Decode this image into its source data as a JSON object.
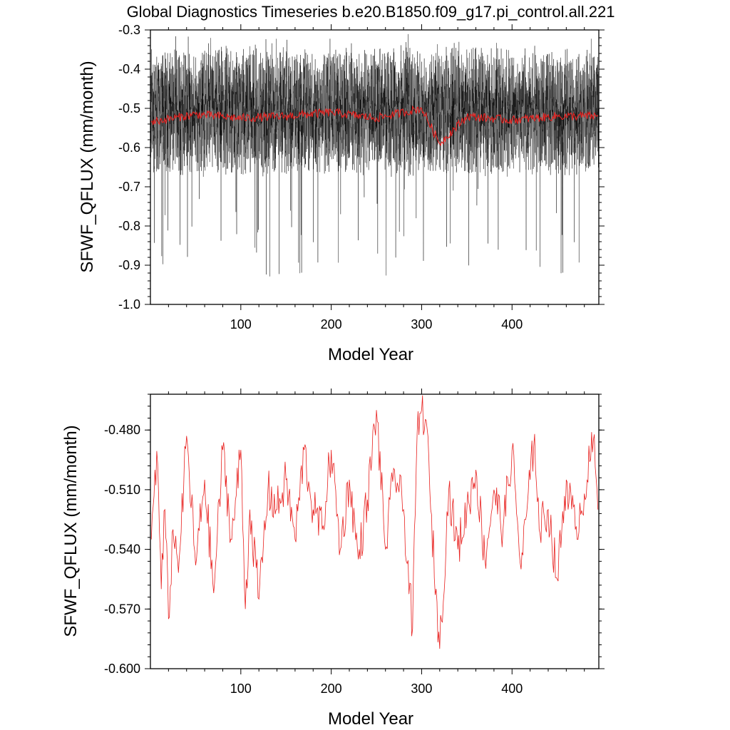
{
  "title": "Global Diagnostics Timeseries b.e20.B1850.f09_g17.pi_control.all.221",
  "colors": {
    "monthly_series": "#000000",
    "annual_series": "#e8201e",
    "background": "#ffffff"
  },
  "chart_data": [
    {
      "type": "line",
      "xlabel": "Model Year",
      "ylabel": "SFWF_QFLUX (mm/month)",
      "xlim": [
        0,
        496
      ],
      "ylim": [
        -1.0,
        -0.3
      ],
      "x_ticks": [
        100,
        200,
        300,
        400
      ],
      "x_tick_labels": [
        "100",
        "200",
        "300",
        "400"
      ],
      "y_ticks": [
        -1.0,
        -0.9,
        -0.8,
        -0.7,
        -0.6,
        -0.5,
        -0.4,
        -0.3
      ],
      "y_tick_labels": [
        "-1.0",
        "-0.9",
        "-0.8",
        "-0.7",
        "-0.6",
        "-0.5",
        "-0.4",
        "-0.3"
      ],
      "grid": false,
      "series": [
        {
          "kind": "monthly",
          "envelope": {
            "mean": -0.51,
            "upper_typical": -0.4,
            "lower_typical": -0.7,
            "max": -0.31,
            "min": -0.935
          }
        },
        {
          "kind": "annual_mean",
          "x": [
            1,
            50,
            100,
            150,
            200,
            250,
            300,
            320,
            350,
            400,
            450,
            495
          ],
          "y": [
            -0.535,
            -0.515,
            -0.525,
            -0.52,
            -0.51,
            -0.525,
            -0.5,
            -0.59,
            -0.52,
            -0.53,
            -0.52,
            -0.52
          ]
        }
      ]
    },
    {
      "type": "line",
      "xlabel": "Model Year",
      "ylabel": "SFWF_QFLUX (mm/month)",
      "xlim": [
        0,
        496
      ],
      "ylim": [
        -0.6,
        -0.462
      ],
      "x_ticks": [
        100,
        200,
        300,
        400
      ],
      "x_tick_labels": [
        "100",
        "200",
        "300",
        "400"
      ],
      "y_ticks": [
        -0.6,
        -0.57,
        -0.54,
        -0.51,
        -0.48
      ],
      "y_tick_labels": [
        "-0.600",
        "-0.570",
        "-0.540",
        "-0.510",
        "-0.480"
      ],
      "grid": false,
      "series": [
        {
          "kind": "annual_mean",
          "x": [
            1,
            5,
            8,
            12,
            16,
            20,
            25,
            30,
            33,
            40,
            50,
            60,
            70,
            80,
            90,
            100,
            105,
            110,
            120,
            130,
            140,
            150,
            160,
            170,
            180,
            190,
            200,
            210,
            220,
            230,
            240,
            250,
            260,
            270,
            280,
            290,
            295,
            300,
            305,
            310,
            320,
            330,
            340,
            350,
            360,
            370,
            380,
            390,
            400,
            410,
            420,
            425,
            430,
            440,
            450,
            460,
            470,
            480,
            490,
            495
          ],
          "y": [
            -0.535,
            -0.5,
            -0.497,
            -0.56,
            -0.52,
            -0.575,
            -0.53,
            -0.545,
            -0.538,
            -0.483,
            -0.548,
            -0.505,
            -0.562,
            -0.49,
            -0.535,
            -0.49,
            -0.57,
            -0.52,
            -0.565,
            -0.51,
            -0.52,
            -0.505,
            -0.535,
            -0.49,
            -0.52,
            -0.53,
            -0.49,
            -0.54,
            -0.505,
            -0.545,
            -0.515,
            -0.47,
            -0.54,
            -0.5,
            -0.52,
            -0.58,
            -0.482,
            -0.47,
            -0.475,
            -0.52,
            -0.59,
            -0.51,
            -0.54,
            -0.52,
            -0.5,
            -0.545,
            -0.51,
            -0.53,
            -0.49,
            -0.55,
            -0.505,
            -0.482,
            -0.53,
            -0.52,
            -0.555,
            -0.505,
            -0.53,
            -0.512,
            -0.485,
            -0.52
          ]
        }
      ]
    }
  ]
}
